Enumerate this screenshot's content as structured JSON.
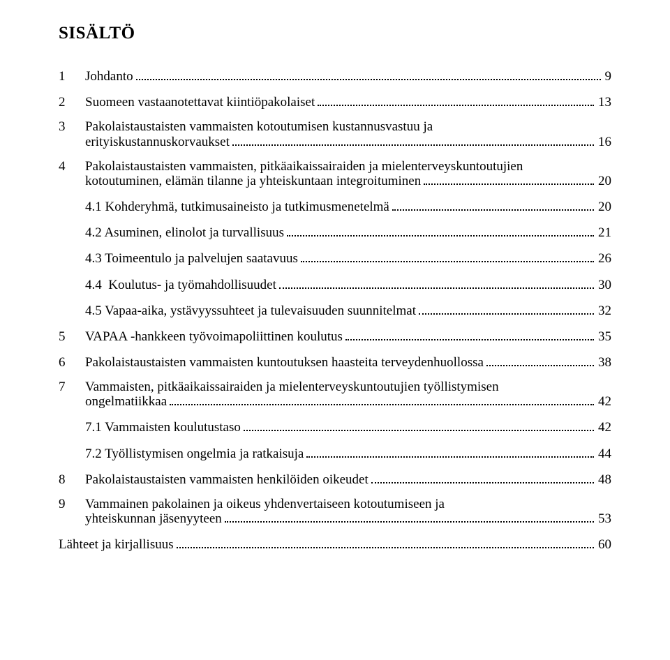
{
  "title": "SISÄLTÖ",
  "colors": {
    "text": "#000000",
    "background": "#ffffff"
  },
  "typography": {
    "font_family": "Times New Roman",
    "body_size_pt": 14,
    "title_size_pt": 19,
    "title_weight": "bold"
  },
  "toc": {
    "ch1": {
      "num": "1",
      "text": "Johdanto",
      "page": "9"
    },
    "ch2": {
      "num": "2",
      "text": "Suomeen vastaanotettavat kiintiöpakolaiset",
      "page": "13"
    },
    "ch3": {
      "num": "3",
      "line1": "Pakolaistaustaisten vammaisten kotoutumisen kustannusvastuu ja",
      "line2": "erityiskustannuskorvaukset",
      "page": "16"
    },
    "ch4": {
      "num": "4",
      "line1": "Pakolaistaustaisten vammaisten, pitkäaikaissairaiden ja mielenterveyskuntoutujien",
      "line2": "kotoutuminen, elämän tilanne ja yhteiskuntaan integroituminen",
      "page": "20"
    },
    "s4_1": {
      "text": "4.1 Kohderyhmä, tutkimusaineisto ja tutkimusmenetelmä",
      "page": "20"
    },
    "s4_2": {
      "text": "4.2 Asuminen, elinolot ja turvallisuus",
      "page": "21"
    },
    "s4_3": {
      "text": "4.3 Toimeentulo ja palvelujen saatavuus",
      "page": "26"
    },
    "s4_4": {
      "text": "4.4  Koulutus- ja työmahdollisuudet",
      "page": "30"
    },
    "s4_5": {
      "text": "4.5 Vapaa-aika, ystävyyssuhteet ja tulevaisuuden suunnitelmat",
      "page": "32"
    },
    "ch5": {
      "num": "5",
      "text": "VAPAA -hankkeen työvoimapoliittinen koulutus",
      "page": "35"
    },
    "ch6": {
      "num": "6",
      "text": "Pakolaistaustaisten vammaisten kuntoutuksen haasteita terveydenhuollossa",
      "page": "38"
    },
    "ch7": {
      "num": "7",
      "line1": "Vammaisten, pitkäaikaissairaiden ja mielenterveyskuntoutujien työllistymisen",
      "line2": "ongelmatiikkaa",
      "page": "42"
    },
    "s7_1": {
      "text": "7.1 Vammaisten koulutustaso",
      "page": "42"
    },
    "s7_2": {
      "text": "7.2 Työllistymisen ongelmia ja ratkaisuja",
      "page": "44"
    },
    "ch8": {
      "num": "8",
      "text": "Pakolaistaustaisten vammaisten henkilöiden oikeudet",
      "page": "48"
    },
    "ch9": {
      "num": "9",
      "line1": "Vammainen pakolainen ja oikeus yhdenvertaiseen kotoutumiseen ja",
      "line2": "yhteiskunnan jäsenyyteen",
      "page": "53"
    },
    "refs": {
      "text": "Lähteet ja kirjallisuus",
      "page": "60"
    }
  }
}
